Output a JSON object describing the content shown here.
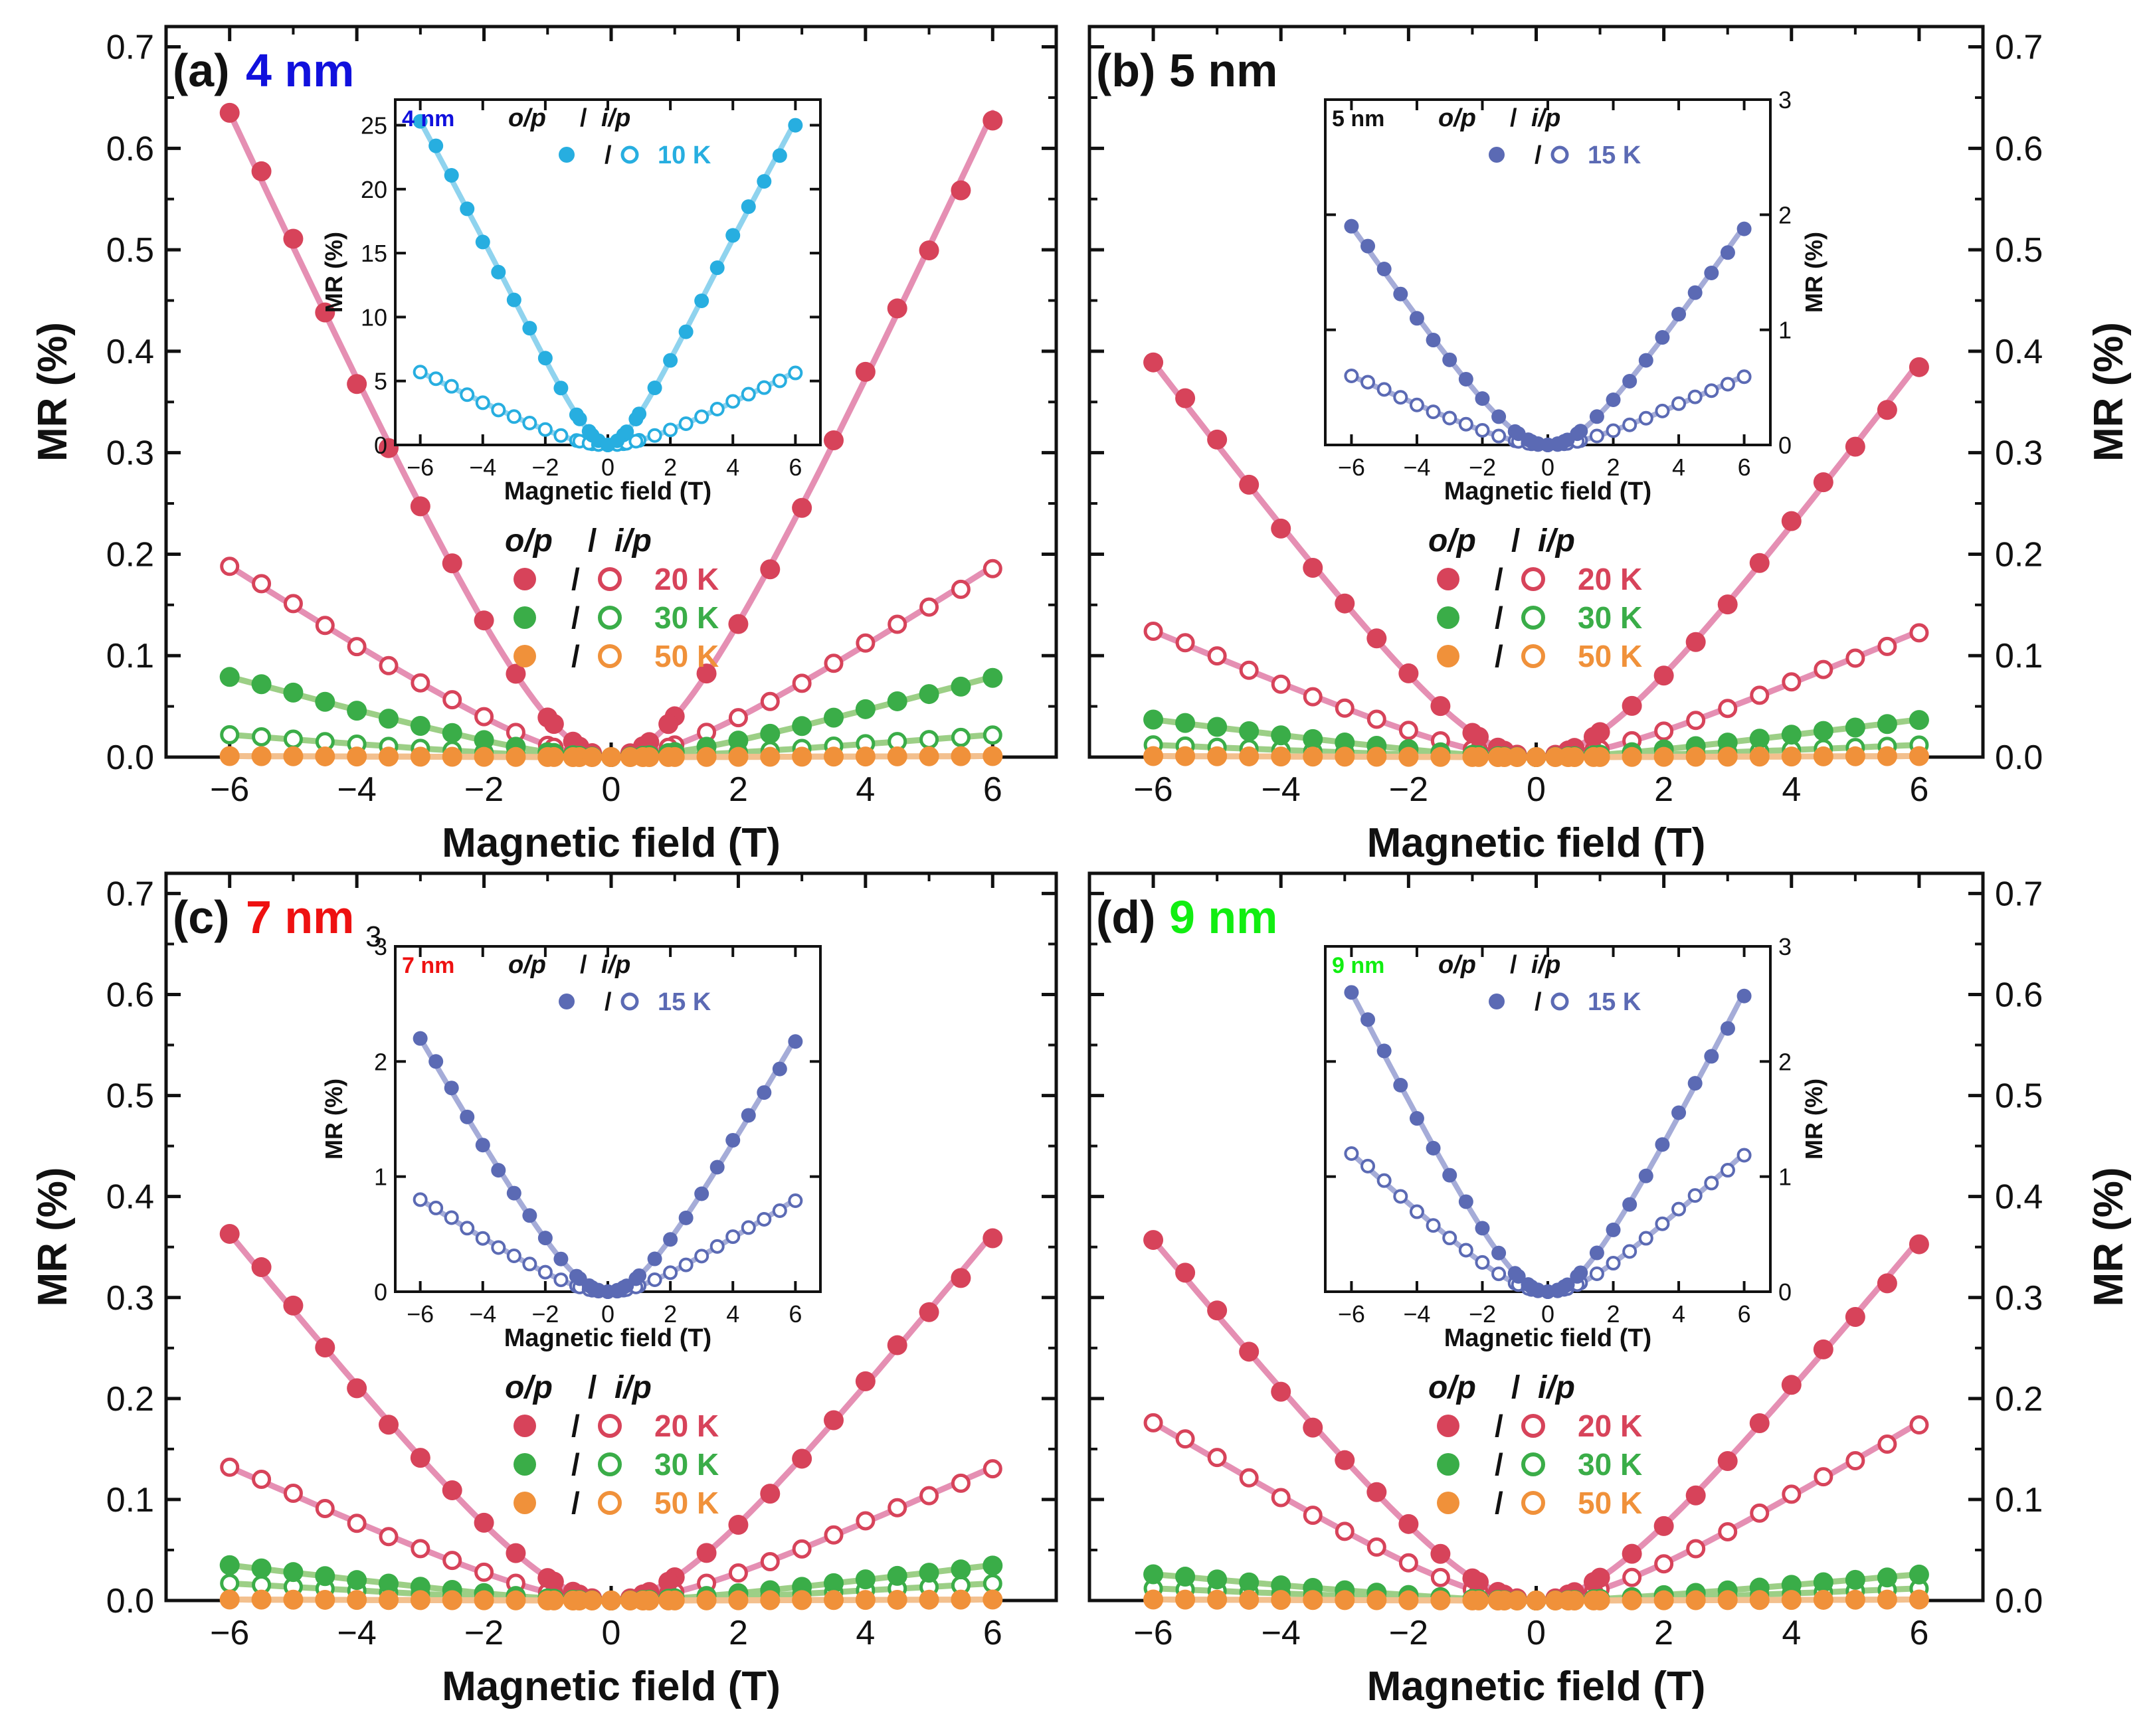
{
  "figure": {
    "xlabel": "Magnetic field (T)",
    "ylabel": "MR (%)",
    "inset_xlabel": "Magnetic field (T)",
    "inset_ylabel": "MR (%)",
    "op_label": "o/p",
    "slash_label": "/",
    "ip_label": "i/p",
    "colors": {
      "20K": "#d7435a",
      "20K_fit": "#e58fb3",
      "30K": "#3aad48",
      "30K_fit": "#9ccf86",
      "50K": "#f0913a",
      "50K_fit": "#f3c08e",
      "inset_4nm": "#27aee0",
      "inset_4nm_fit": "#8fd3ee",
      "inset_other": "#5b6ab4",
      "inset_other_fit": "#a5acd8"
    }
  },
  "chart_data": [
    {
      "panel": "(a)",
      "label_text": "4 nm",
      "label_color": "#1010dd",
      "type": "scatter",
      "xlabel": "Magnetic field (T)",
      "ylabel": "MR (%)",
      "xlim": [
        -7,
        7
      ],
      "ylim": [
        0,
        0.72
      ],
      "xticks": [
        -6,
        -4,
        -2,
        0,
        2,
        4,
        6
      ],
      "yticks": [
        0.0,
        0.1,
        0.2,
        0.3,
        0.4,
        0.5,
        0.6,
        0.7
      ],
      "ytick_labels": [
        "0.0",
        "0.1",
        "0.2",
        "0.3",
        "0.4",
        "0.5",
        "0.6",
        "0.7"
      ],
      "series": [
        {
          "name": "20 K",
          "ip_max": 0.188,
          "op_max": 0.635,
          "fit": "20K_fit"
        },
        {
          "name": "30 K",
          "ip_max": 0.022,
          "op_max": 0.079,
          "fit": "30K_fit"
        },
        {
          "name": "50 K",
          "ip_max": 0.001,
          "op_max": 0.001,
          "fit": "50K_fit"
        }
      ],
      "inset": {
        "label": "4 nm",
        "label_color": "#1010dd",
        "temperature": "10 K",
        "ylim": [
          0,
          27
        ],
        "yticks": [
          0,
          5,
          10,
          15,
          20,
          25
        ],
        "ytick_labels": [
          "0",
          "5",
          "10",
          "15",
          "20",
          "25"
        ],
        "yaxis_side": "left",
        "xticks": [
          -6,
          -4,
          -2,
          0,
          2,
          4,
          6
        ],
        "op_max": 25.3,
        "ip_max": 5.7,
        "op_shape": "v",
        "color": "inset_4nm"
      }
    },
    {
      "panel": "(b)",
      "label_text": "5 nm",
      "label_color": "#111111",
      "type": "scatter",
      "xlabel": "Magnetic field (T)",
      "ylabel": "MR (%)",
      "xlim": [
        -7,
        7
      ],
      "ylim": [
        0,
        0.72
      ],
      "xticks": [
        -6,
        -4,
        -2,
        0,
        2,
        4,
        6
      ],
      "yticks": [
        0.0,
        0.1,
        0.2,
        0.3,
        0.4,
        0.5,
        0.6,
        0.7
      ],
      "ytick_labels": [
        "0.0",
        "0.1",
        "0.2",
        "0.3",
        "0.4",
        "0.5",
        "0.6",
        "0.7"
      ],
      "series": [
        {
          "name": "20 K",
          "ip_max": 0.124,
          "op_max": 0.389,
          "fit": "20K_fit"
        },
        {
          "name": "30 K",
          "ip_max": 0.012,
          "op_max": 0.037,
          "fit": "30K_fit"
        },
        {
          "name": "50 K",
          "ip_max": 0.001,
          "op_max": 0.001,
          "fit": "50K_fit"
        }
      ],
      "inset": {
        "label": "5 nm",
        "label_color": "#111111",
        "temperature": "15 K",
        "ylim": [
          0,
          3
        ],
        "yticks": [
          0,
          1,
          2,
          3
        ],
        "ytick_labels": [
          "0",
          "1",
          "2",
          "3"
        ],
        "yaxis_side": "right",
        "xticks": [
          -6,
          -4,
          -2,
          0,
          2,
          4,
          6
        ],
        "op_max": 1.9,
        "ip_max": 0.6,
        "op_shape": "u",
        "color": "inset_other"
      }
    },
    {
      "panel": "(c)",
      "label_text": "7 nm",
      "label_color": "#ee1111",
      "type": "scatter",
      "xlabel": "Magnetic field (T)",
      "ylabel": "MR (%)",
      "xlim": [
        -7,
        7
      ],
      "ylim": [
        0,
        0.72
      ],
      "xticks": [
        -6,
        -4,
        -2,
        0,
        2,
        4,
        6
      ],
      "yticks": [
        0.0,
        0.1,
        0.2,
        0.3,
        0.4,
        0.5,
        0.6,
        0.7
      ],
      "ytick_labels": [
        "0.0",
        "0.1",
        "0.2",
        "0.3",
        "0.4",
        "0.5",
        "0.6",
        "0.7"
      ],
      "series": [
        {
          "name": "20 K",
          "ip_max": 0.132,
          "op_max": 0.363,
          "fit": "20K_fit"
        },
        {
          "name": "30 K",
          "ip_max": 0.017,
          "op_max": 0.035,
          "fit": "30K_fit"
        },
        {
          "name": "50 K",
          "ip_max": 0.001,
          "op_max": 0.001,
          "fit": "50K_fit"
        }
      ],
      "inset": {
        "label": "7 nm",
        "label_color": "#ee1111",
        "temperature": "15 K",
        "ylim": [
          0,
          3
        ],
        "yticks": [
          0,
          1,
          2,
          3
        ],
        "ytick_labels": [
          "0",
          "1",
          "2",
          "3"
        ],
        "yaxis_side": "left",
        "xticks": [
          -6,
          -4,
          -2,
          0,
          2,
          4,
          6
        ],
        "op_max": 2.2,
        "ip_max": 0.8,
        "op_shape": "u",
        "color": "inset_other"
      }
    },
    {
      "panel": "(d)",
      "label_text": "9 nm",
      "label_color": "#11ee11",
      "type": "scatter",
      "xlabel": "Magnetic field (T)",
      "ylabel": "MR (%)",
      "xlim": [
        -7,
        7
      ],
      "ylim": [
        0,
        0.72
      ],
      "xticks": [
        -6,
        -4,
        -2,
        0,
        2,
        4,
        6
      ],
      "yticks": [
        0.0,
        0.1,
        0.2,
        0.3,
        0.4,
        0.5,
        0.6,
        0.7
      ],
      "ytick_labels": [
        "0.0",
        "0.1",
        "0.2",
        "0.3",
        "0.4",
        "0.5",
        "0.6",
        "0.7"
      ],
      "series": [
        {
          "name": "20 K",
          "ip_max": 0.176,
          "op_max": 0.357,
          "fit": "20K_fit"
        },
        {
          "name": "30 K",
          "ip_max": 0.012,
          "op_max": 0.026,
          "fit": "30K_fit"
        },
        {
          "name": "50 K",
          "ip_max": 0.001,
          "op_max": 0.001,
          "fit": "50K_fit"
        }
      ],
      "inset": {
        "label": "9 nm",
        "label_color": "#11ee11",
        "temperature": "15 K",
        "ylim": [
          0,
          3
        ],
        "yticks": [
          0,
          1,
          2,
          3
        ],
        "ytick_labels": [
          "0",
          "1",
          "2",
          "3"
        ],
        "yaxis_side": "right",
        "xticks": [
          -6,
          -4,
          -2,
          0,
          2,
          4,
          6
        ],
        "op_max": 2.6,
        "ip_max": 1.2,
        "op_shape": "u",
        "color": "inset_other"
      }
    }
  ],
  "stray_subscript": "3"
}
